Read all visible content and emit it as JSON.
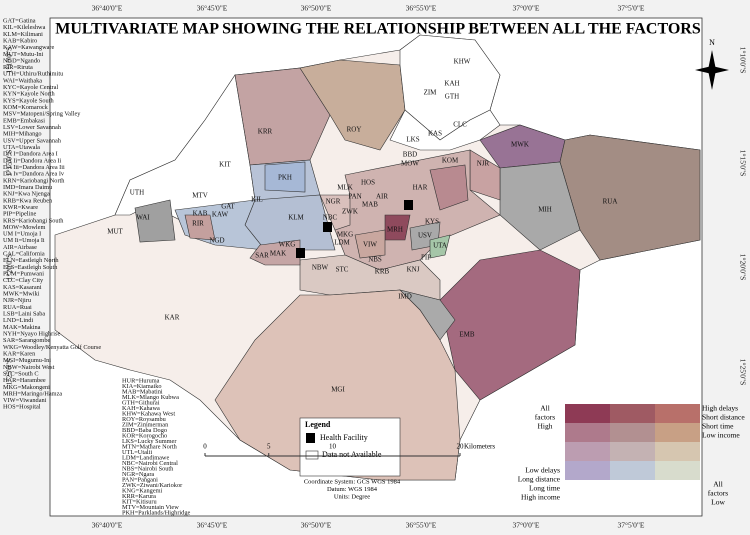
{
  "title": "MULTIVARIATE MAP SHOWING THE RELATIONSHIP BETWEEN ALL THE FACTORS",
  "longitude_labels": [
    "36°40'0\"E",
    "36°45'0\"E",
    "36°50'0\"E",
    "36°55'0\"E",
    "37°0'0\"E",
    "37°5'0\"E"
  ],
  "latitude_labels": [
    "1°10'0\"S",
    "1°15'0\"S",
    "1°20'0\"S",
    "1°25'0\"S"
  ],
  "abbreviations_left": [
    "GAT=Gatina",
    "KIL=Kileleshwa",
    "KLM=Kilimani",
    "KAB=Kabiro",
    "KAW=Kawangware",
    "MUT=Mutu-Ini",
    "NGD=Ngando",
    "RIR=Riruta",
    "UTH=Uthiru/Ruthimitu",
    "WAI=Waithaka",
    "KYC=Kayole Central",
    "KYN=Kayole North",
    "KYS=Kayole South",
    "KOM=Komarock",
    "MSV=Matopeni/Spring Valley",
    "EMB=Embakasi",
    "LSV=Lower Savannah",
    "MIH=Mihango",
    "USV=Upper Savannah",
    "UTA=Utawala",
    "DA I=Dandora Area I",
    "DA Ii=Dandora Area Ii",
    "DA Iii=Dandora Area Iii",
    "DA Iv=Dandora Area Iv",
    "KRN=Kariobangi North",
    "IMD=Imara Daimu",
    "KNJ=Kwa Njenga",
    "KRB=Kwa Reuben",
    "KWR=Kware",
    "PIP=Pipeline",
    "KRS=Kariobangi South",
    "MOW=Mowlem",
    "UM I=Umoja I",
    "UM Ii=Umoja Ii",
    "AIR=Airbase",
    "CAL=California",
    "ELN=Eastleigh North",
    "ELS=Eastleigh South",
    "PUM=Pumwani",
    "CLC=Clay City",
    "KAS=Kasarani",
    "MWK=Mwiki",
    "NJR=Njiru",
    "RUA=Ruai",
    "LSB=Laini Saba",
    "LND=Lindi",
    "MAK=Makina",
    "NYH=Nyayo Highrise",
    "SAR=Sarangombe",
    "WKG=Woodley/Kenyatta Golf Course",
    "KAR=Karen",
    "MGI=Mugumu-Ini",
    "NBW=Nairobi West",
    "STC=South C",
    "HAR=Harambee",
    "MKG=Makongeni",
    "MRH=Maringo/Hamza",
    "VIW=Viwandani",
    "HOS=Hospital"
  ],
  "abbreviations_right": [
    "HUR=Huruma",
    "KIA=Kiamaiko",
    "MAB=Mabatini",
    "MLK=Mlango Kubwa",
    "GTH=Githurai",
    "KAH=Kahawa",
    "KHW=Kahawa West",
    "ROY=Roysambu",
    "ZIM=Zimmerman",
    "BBD=Baba Dogo",
    "KOR=Korogocho",
    "LKS=Lucky Summer",
    "MTN=Mathare North",
    "UTL=Utalii",
    "LDM=Landimawe",
    "NBC=Nairobi Central",
    "NBS=Nairobi South",
    "NGR=Ngara",
    "PAN=Pangani",
    "ZWK=Ziwani/Kariokor",
    "KNG=Kangemi",
    "KRR=Karura",
    "KIT=Kitisuru",
    "MTV=Mountain View",
    "PKH=Parklands/Highridge"
  ],
  "regions": [
    "KHW",
    "KAH",
    "ZIM",
    "GTH",
    "CLC",
    "KAS",
    "MWK",
    "RUA",
    "MIH",
    "EMB",
    "KRR",
    "ROY",
    "KIT",
    "PKH",
    "KIL",
    "UTH",
    "MTV",
    "WAI",
    "GAT",
    "KAB",
    "KAW",
    "RIR",
    "NGD",
    "KLM",
    "NBC",
    "NGR",
    "MAB",
    "AIR",
    "HAR",
    "MKG",
    "MRH",
    "VIW",
    "WKG",
    "SAR",
    "MAK",
    "LDM",
    "NBW",
    "STC",
    "NBS",
    "KRB",
    "IMD",
    "MGI",
    "KAR",
    "MUT",
    "NJR",
    "MOW",
    "LKS",
    "USV",
    "UTA",
    "KYS",
    "KOM",
    "KNJ",
    "PIP",
    "BBD",
    "HOS",
    "ZWK",
    "PAN",
    "MLK"
  ],
  "north": "N",
  "legend": {
    "title": "Legend",
    "items": [
      "Health Facility",
      "Data not Available"
    ]
  },
  "bivariate_legend": {
    "top_left": [
      "All",
      "factors",
      "High"
    ],
    "top_right": [
      "High delays",
      "Short distance",
      "Short time",
      "Low income"
    ],
    "bottom_left": [
      "Low delays",
      "Long distance",
      "Long time",
      "High income"
    ],
    "bottom_right": [
      "All",
      "factors",
      "Low"
    ],
    "colors": [
      [
        "#8e3a55",
        "#9f5a63",
        "#b8706a"
      ],
      [
        "#ae7a8c",
        "#b29091",
        "#c8a085"
      ],
      [
        "#bc9db1",
        "#c4b2b3",
        "#d6c6b0"
      ],
      [
        "#b3a8cb",
        "#bfc9d8",
        "#d8dccd"
      ]
    ]
  },
  "scale": {
    "ticks": [
      0,
      5,
      10,
      20
    ],
    "unit": "Kilometers"
  },
  "coordinate_info": [
    "Coordinate System: GCS WGS 1984",
    "Datum: WGS 1984",
    "Units: Degree"
  ]
}
